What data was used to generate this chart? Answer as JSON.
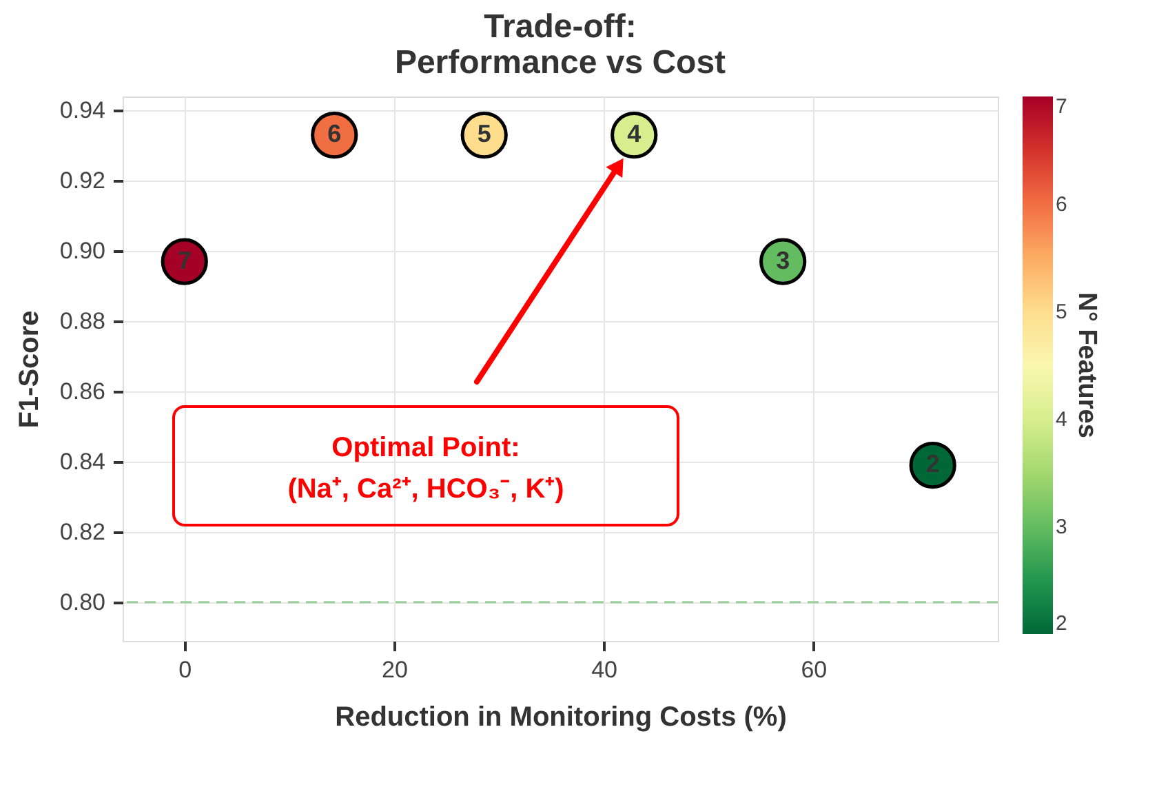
{
  "chart_data": {
    "type": "scatter",
    "title": "Trade-off:\nPerformance vs Cost",
    "xlabel": "Reduction in Monitoring Costs (%)",
    "ylabel": "F1-Score",
    "clabel": "N° Features",
    "x": [
      0,
      14.3,
      28.6,
      42.9,
      57.1,
      71.4
    ],
    "values": [
      0.897,
      0.933,
      0.933,
      0.933,
      0.897,
      0.839
    ],
    "cvalues": [
      7,
      6,
      5,
      4,
      3,
      2
    ],
    "clim": [
      2,
      7
    ],
    "cticks": [
      2,
      3,
      4,
      5,
      6,
      7
    ],
    "xlim": [
      -5.9,
      77.6
    ],
    "xticks": [
      0,
      20,
      40,
      60
    ],
    "ylim": [
      0.789,
      0.944
    ],
    "yticks": [
      {
        "value": 0.8,
        "label": "0.80"
      },
      0.82,
      0.84,
      0.86,
      0.88,
      {
        "value": 0.9,
        "label": "0.90"
      },
      0.92,
      0.94
    ],
    "grid": true,
    "marker": "circle",
    "ref_lines": [
      {
        "axis": "y",
        "value": 0.8,
        "color": "#9ed09e",
        "line_style": "dashed"
      }
    ],
    "annotations": [
      "Optimal Point:\n(Na⁺, Ca²⁺, HCO₃⁻, K⁺)",
      {
        "text": "7",
        "x": 0,
        "y": 0.897
      },
      {
        "text": "6",
        "x": 14.3,
        "y": 0.933
      },
      {
        "text": "5",
        "x": 28.6,
        "y": 0.933
      },
      {
        "text": "4",
        "x": 42.9,
        "y": 0.933
      },
      {
        "text": "3",
        "x": 57.1,
        "y": 0.897
      },
      {
        "text": "2",
        "x": 71.4,
        "y": 0.839
      }
    ]
  }
}
